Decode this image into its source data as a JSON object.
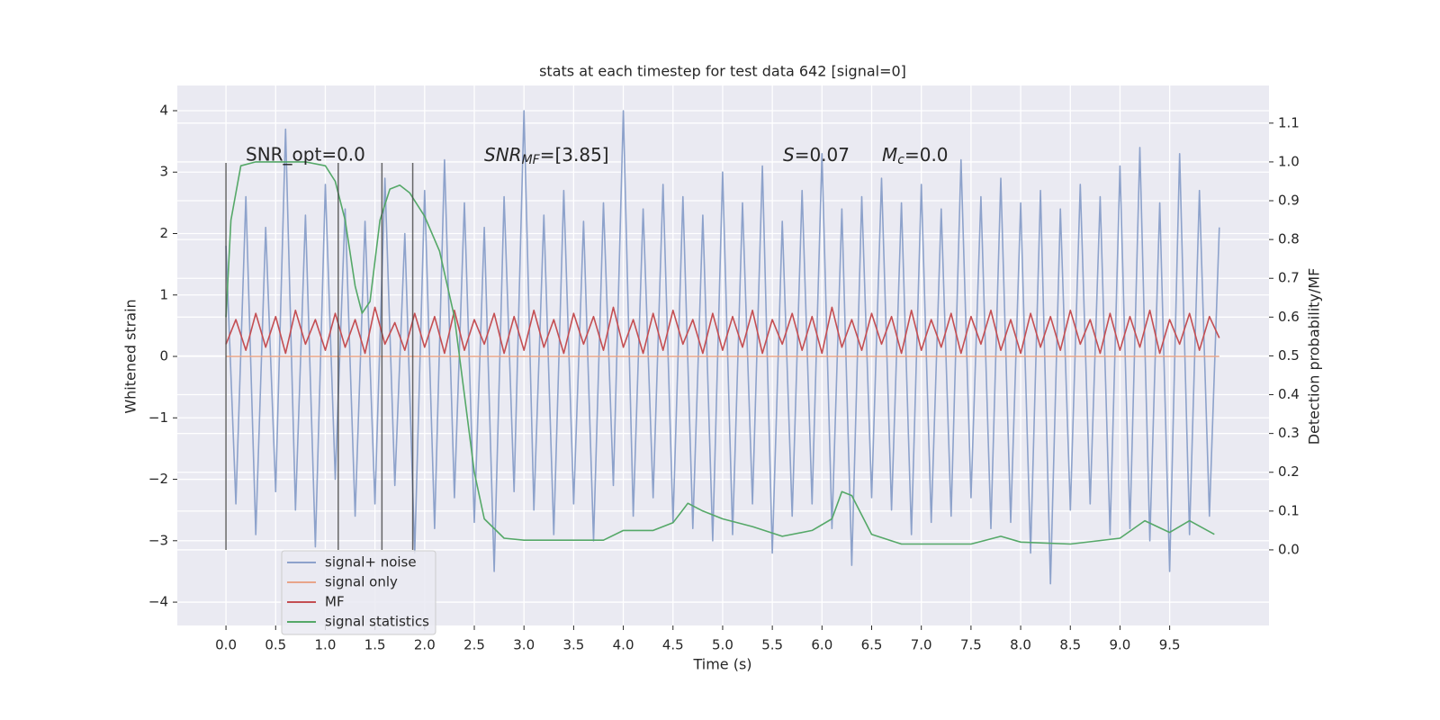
{
  "chart_data": {
    "type": "line",
    "title": "stats at each timestep for test data 642 [signal=0]",
    "xlabel": "Time (s)",
    "ylabel": "Whitened strain",
    "y2label": "Detection probability/MF",
    "annotations": {
      "snr_opt": "SNR_opt=0.0",
      "snr_mf": [
        "SNR",
        "MF",
        "=[3.85]"
      ],
      "s": [
        "S",
        "=0.07"
      ],
      "mc": [
        "M",
        "c",
        "=0.0"
      ]
    },
    "xlim": [
      -0.49,
      10.5
    ],
    "ylim": [
      -4.38,
      4.41
    ],
    "y2lim": [
      -0.195,
      1.197
    ],
    "xticks": [
      {
        "value": 0,
        "label": "0.0"
      },
      0.5,
      {
        "value": 1,
        "label": "1.0"
      },
      1.5,
      {
        "value": 2,
        "label": "2.0"
      },
      2.5,
      {
        "value": 3,
        "label": "3.0"
      },
      3.5,
      {
        "value": 4,
        "label": "4.0"
      },
      4.5,
      {
        "value": 5,
        "label": "5.0"
      },
      5.5,
      {
        "value": 6,
        "label": "6.0"
      },
      6.5,
      {
        "value": 7,
        "label": "7.0"
      },
      7.5,
      {
        "value": 8,
        "label": "8.0"
      },
      8.5,
      {
        "value": 9,
        "label": "9.0"
      },
      9.5
    ],
    "yticks": [
      {
        "value": -4,
        "label": "−4"
      },
      {
        "value": -3,
        "label": "−3"
      },
      {
        "value": -2,
        "label": "−2"
      },
      {
        "value": -1,
        "label": "−1"
      },
      0,
      1,
      2,
      3,
      4
    ],
    "y2ticks": [
      {
        "value": 0,
        "label": "0.0"
      },
      0.1,
      0.2,
      0.3,
      0.4,
      0.5,
      0.6,
      0.7,
      0.8,
      0.9,
      {
        "value": 1,
        "label": "1.0"
      },
      1.1
    ],
    "grid": true,
    "legend": "lower left",
    "vlines": [
      0,
      1.13,
      1.57,
      1.88
    ],
    "vline_range": [
      -3.15,
      3.15
    ],
    "x": [
      0,
      0.1,
      0.2,
      0.3,
      0.4,
      0.5,
      0.6,
      0.7,
      0.8,
      0.9,
      1,
      1.1,
      1.2,
      1.3,
      1.4,
      1.5,
      1.6,
      1.7,
      1.8,
      1.9,
      2,
      2.1,
      2.2,
      2.3,
      2.4,
      2.5,
      2.6,
      2.7,
      2.8,
      2.9,
      3,
      3.1,
      3.2,
      3.3,
      3.4,
      3.5,
      3.6,
      3.7,
      3.8,
      3.9,
      4,
      4.1,
      4.2,
      4.3,
      4.4,
      4.5,
      4.6,
      4.7,
      4.8,
      4.9,
      5,
      5.1,
      5.2,
      5.3,
      5.4,
      5.5,
      5.6,
      5.7,
      5.8,
      5.9,
      6,
      6.1,
      6.2,
      6.3,
      6.4,
      6.5,
      6.6,
      6.7,
      6.8,
      6.9,
      7,
      7.1,
      7.2,
      7.3,
      7.4,
      7.5,
      7.6,
      7.7,
      7.8,
      7.9,
      8,
      8.1,
      8.2,
      8.3,
      8.4,
      8.5,
      8.6,
      8.7,
      8.8,
      8.9,
      9,
      9.1,
      9.2,
      9.3,
      9.4,
      9.5,
      9.6,
      9.7,
      9.8,
      9.9,
      10
    ],
    "series": [
      {
        "name": "signal+ noise",
        "color": "#8da2cb",
        "values": [
          1.8,
          -2.4,
          2.6,
          -2.9,
          2.1,
          -2.2,
          3.7,
          -2.5,
          2.3,
          -3.1,
          2.8,
          -2.0,
          2.4,
          -2.6,
          2.2,
          -2.4,
          2.9,
          -2.1,
          2.0,
          -3.2,
          2.7,
          -2.8,
          3.2,
          -2.3,
          2.5,
          -2.7,
          2.1,
          -3.5,
          2.6,
          -2.2,
          4.0,
          -2.5,
          2.3,
          -2.9,
          2.7,
          -2.4,
          2.2,
          -3.0,
          2.5,
          -2.1,
          4.0,
          -2.6,
          2.4,
          -2.3,
          2.8,
          -2.7,
          2.6,
          -2.8,
          2.3,
          -3.0,
          3.0,
          -2.9,
          2.5,
          -2.4,
          3.1,
          -3.2,
          2.2,
          -2.6,
          2.7,
          -2.4,
          3.3,
          -2.8,
          2.4,
          -3.4,
          2.6,
          -2.3,
          2.9,
          -2.5,
          2.5,
          -2.9,
          2.8,
          -2.7,
          2.4,
          -2.6,
          3.2,
          -2.3,
          2.6,
          -2.8,
          2.9,
          -2.7,
          2.5,
          -3.2,
          2.7,
          -3.7,
          2.4,
          -2.5,
          2.8,
          -2.4,
          2.6,
          -2.9,
          3.1,
          -2.8,
          3.4,
          -3.0,
          2.5,
          -3.5,
          3.3,
          -2.9,
          2.7,
          -2.6,
          2.1
        ]
      },
      {
        "name": "signal only",
        "color": "#e8a58a",
        "x": [
          0,
          10
        ],
        "values": [
          0,
          0
        ]
      },
      {
        "name": "MF",
        "color": "#c44e52",
        "values": [
          0.2,
          0.6,
          0.1,
          0.7,
          0.15,
          0.65,
          0.05,
          0.75,
          0.2,
          0.6,
          0.1,
          0.7,
          0.15,
          0.6,
          0.05,
          0.8,
          0.2,
          0.55,
          0.1,
          0.7,
          0.15,
          0.65,
          0.05,
          0.75,
          0.1,
          0.6,
          0.2,
          0.7,
          0.05,
          0.65,
          0.1,
          0.75,
          0.15,
          0.6,
          0.05,
          0.7,
          0.2,
          0.65,
          0.1,
          0.8,
          0.15,
          0.6,
          0.05,
          0.7,
          0.1,
          0.75,
          0.2,
          0.6,
          0.05,
          0.7,
          0.1,
          0.65,
          0.15,
          0.75,
          0.05,
          0.6,
          0.2,
          0.7,
          0.1,
          0.65,
          0.05,
          0.8,
          0.15,
          0.6,
          0.1,
          0.7,
          0.2,
          0.65,
          0.05,
          0.75,
          0.1,
          0.6,
          0.15,
          0.7,
          0.05,
          0.65,
          0.2,
          0.75,
          0.1,
          0.6,
          0.05,
          0.7,
          0.15,
          0.65,
          0.1,
          0.75,
          0.2,
          0.6,
          0.05,
          0.7,
          0.1,
          0.65,
          0.15,
          0.75,
          0.05,
          0.6,
          0.2,
          0.7,
          0.1,
          0.65,
          0.3
        ]
      },
      {
        "name": "signal statistics",
        "color": "#55a868",
        "axis": "y2",
        "x": [
          0,
          0.05,
          0.1,
          0.15,
          0.3,
          0.5,
          0.8,
          1.0,
          1.1,
          1.2,
          1.3,
          1.37,
          1.45,
          1.55,
          1.65,
          1.75,
          1.85,
          2.0,
          2.15,
          2.3,
          2.4,
          2.5,
          2.6,
          2.8,
          3.0,
          3.5,
          3.8,
          4.0,
          4.3,
          4.5,
          4.65,
          4.8,
          5.0,
          5.3,
          5.6,
          5.9,
          6.1,
          6.2,
          6.3,
          6.5,
          6.8,
          7.5,
          7.8,
          8.0,
          8.5,
          9.0,
          9.25,
          9.5,
          9.7,
          9.95
        ],
        "values": [
          0.6,
          0.85,
          0.92,
          0.99,
          1.0,
          1.0,
          1.0,
          0.99,
          0.95,
          0.85,
          0.68,
          0.61,
          0.64,
          0.85,
          0.93,
          0.94,
          0.92,
          0.86,
          0.77,
          0.6,
          0.4,
          0.2,
          0.08,
          0.03,
          0.025,
          0.025,
          0.025,
          0.05,
          0.05,
          0.07,
          0.12,
          0.1,
          0.08,
          0.06,
          0.035,
          0.05,
          0.08,
          0.15,
          0.14,
          0.04,
          0.015,
          0.015,
          0.035,
          0.02,
          0.015,
          0.03,
          0.075,
          0.045,
          0.075,
          0.04
        ]
      }
    ]
  }
}
